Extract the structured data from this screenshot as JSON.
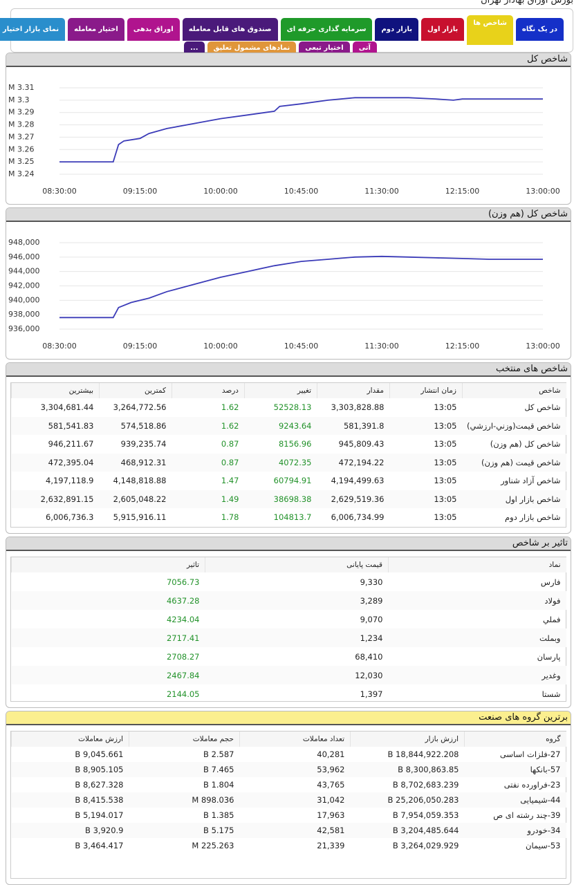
{
  "header": {
    "title": "بورس اوراق بهادار تهران"
  },
  "tabs": [
    {
      "label": "در یک نگاه",
      "color": "#1530c8"
    },
    {
      "label": "شاخص ها",
      "color": "#e8d21a"
    },
    {
      "label": "بازار اول",
      "color": "#c8102e"
    },
    {
      "label": "بازار دوم",
      "color": "#10127e"
    },
    {
      "label": "سرمایه گذاری حرفه ای",
      "color": "#1f9a2a"
    },
    {
      "label": "صندوق های قابل معامله",
      "color": "#4a1a7a"
    },
    {
      "label": "اوراق بدهی",
      "color": "#b0148e"
    },
    {
      "label": "اختیار معامله",
      "color": "#8a1a8a"
    },
    {
      "label": "نمای بازار اختیار معامله",
      "color": "#2a8ecc"
    }
  ],
  "tabs_row2": [
    {
      "label": "آتی",
      "color": "#b0148e"
    },
    {
      "label": "اختیار تبعی",
      "color": "#8a1a8a"
    },
    {
      "label": "نمادهای مشمول تعلیق",
      "color": "#e0963a"
    },
    {
      "label": "...",
      "color": "#4a1a7a"
    }
  ],
  "charts": [
    {
      "title": "شاخص کل",
      "type": "line",
      "color": "#3b3bb8",
      "x": [
        "08:30:00",
        "09:00:00",
        "09:03:00",
        "09:06:00",
        "09:15:00",
        "09:20:00",
        "09:30:00",
        "09:45:00",
        "10:00:00",
        "10:15:00",
        "10:25:00",
        "10:30:00",
        "10:33:00",
        "10:45:00",
        "11:00:00",
        "11:15:00",
        "11:30:00",
        "11:45:00",
        "12:00:00",
        "12:10:00",
        "12:15:00",
        "12:30:00",
        "13:00:00"
      ],
      "values": [
        3.25,
        3.25,
        3.264,
        3.267,
        3.269,
        3.273,
        3.277,
        3.281,
        3.285,
        3.288,
        3.29,
        3.291,
        3.295,
        3.297,
        3.3,
        3.302,
        3.302,
        3.302,
        3.301,
        3.3,
        3.301,
        3.301,
        3.301
      ],
      "xlim": [
        "08:30:00",
        "13:00:00"
      ],
      "xticks": [
        "08:30:00",
        "09:15:00",
        "10:00:00",
        "10:45:00",
        "11:30:00",
        "12:15:00",
        "13:00:00"
      ],
      "ylim": [
        3.24,
        3.31
      ],
      "yticks": [
        {
          "value": 3.24,
          "label": "M 3.24"
        },
        {
          "value": 3.25,
          "label": "M 3.25"
        },
        {
          "value": 3.26,
          "label": "M 3.26"
        },
        {
          "value": 3.27,
          "label": "M 3.27"
        },
        {
          "value": 3.28,
          "label": "M 3.28"
        },
        {
          "value": 3.29,
          "label": "M 3.29"
        },
        {
          "value": 3.3,
          "label": "M 3.3"
        },
        {
          "value": 3.31,
          "label": "M 3.31"
        }
      ],
      "grid": true
    },
    {
      "title": "شاخص کل (هم وزن)",
      "type": "line",
      "color": "#3b3bb8",
      "x": [
        "08:30:00",
        "09:00:00",
        "09:03:00",
        "09:10:00",
        "09:20:00",
        "09:30:00",
        "09:45:00",
        "10:00:00",
        "10:15:00",
        "10:30:00",
        "10:45:00",
        "11:00:00",
        "11:15:00",
        "11:30:00",
        "11:45:00",
        "12:00:00",
        "12:15:00",
        "12:30:00",
        "13:00:00"
      ],
      "values": [
        937600,
        937600,
        939000,
        939700,
        940300,
        941200,
        942200,
        943200,
        944000,
        944800,
        945400,
        945700,
        946000,
        946100,
        946000,
        945900,
        945800,
        945700,
        945700
      ],
      "xlim": [
        "08:30:00",
        "13:00:00"
      ],
      "xticks": [
        "08:30:00",
        "09:15:00",
        "10:00:00",
        "10:45:00",
        "11:30:00",
        "12:15:00",
        "13:00:00"
      ],
      "ylim": [
        936000,
        948000
      ],
      "yticks": [
        {
          "value": 936000,
          "label": "936,000"
        },
        {
          "value": 938000,
          "label": "938,000"
        },
        {
          "value": 940000,
          "label": "940,000"
        },
        {
          "value": 942000,
          "label": "942,000"
        },
        {
          "value": 944000,
          "label": "944,000"
        },
        {
          "value": 946000,
          "label": "946,000"
        },
        {
          "value": 948000,
          "label": "948,000"
        }
      ],
      "grid": true
    }
  ],
  "tables": [
    {
      "title": "شاخص های منتخب",
      "title_color": "#dcdcdc",
      "green_columns": [
        3,
        4
      ],
      "columns": [
        "شاخص",
        "زمان انتشار",
        "مقدار",
        "تغییر",
        "درصد",
        "کمترین",
        "بیشترین"
      ],
      "rows": [
        [
          "شاخص کل",
          "13:05",
          "3,303,828.88",
          "52528.13",
          "1.62",
          "3,264,772.56",
          "3,304,681.44"
        ],
        [
          "شاخص قیمت(وزني-ارزشي)",
          "13:05",
          "581,391.8",
          "9243.64",
          "1.62",
          "574,518.86",
          "581,541.83"
        ],
        [
          "شاخص کل (هم وزن)",
          "13:05",
          "945,809.43",
          "8156.96",
          "0.87",
          "939,235.74",
          "946,211.67"
        ],
        [
          "شاخص قیمت (هم وزن)",
          "13:05",
          "472,194.22",
          "4072.35",
          "0.87",
          "468,912.31",
          "472,395.04"
        ],
        [
          "شاخص آزاد شناور",
          "13:05",
          "4,194,499.63",
          "60794.91",
          "1.47",
          "4,148,818.88",
          "4,197,118.9"
        ],
        [
          "شاخص بازار اول",
          "13:05",
          "2,629,519.36",
          "38698.38",
          "1.49",
          "2,605,048.22",
          "2,632,891.15"
        ],
        [
          "شاخص بازار دوم",
          "13:05",
          "6,006,734.99",
          "104813.7",
          "1.78",
          "5,915,916.11",
          "6,006,736.3"
        ]
      ]
    },
    {
      "title": "تاثیر بر شاخص",
      "title_color": "#dcdcdc",
      "green_columns": [
        2
      ],
      "columns": [
        "نماد",
        "قیمت پایانی",
        "تاثیر"
      ],
      "rows": [
        [
          "فارس",
          "9,330",
          "7056.73"
        ],
        [
          "فولاد",
          "3,289",
          "4637.28"
        ],
        [
          "فملي",
          "9,070",
          "4234.04"
        ],
        [
          "وبملت",
          "1,234",
          "2717.41"
        ],
        [
          "پارسان",
          "68,410",
          "2708.27"
        ],
        [
          "وغدير",
          "12,030",
          "2467.84"
        ],
        [
          "شستا",
          "1,397",
          "2144.05"
        ]
      ]
    },
    {
      "title": "برترین گروه های صنعت",
      "title_color": "#fbef8f",
      "green_columns": [],
      "columns": [
        "گروه",
        "ارزش بازار",
        "تعداد معاملات",
        "حجم معاملات",
        "ارزش معاملات"
      ],
      "rows": [
        [
          "27-فلزات اساسی",
          "18,844,922.208 B",
          "40,281",
          "2.587 B",
          "9,045.661 B"
        ],
        [
          "57-بانکها",
          "8,300,863.85 B",
          "53,962",
          "7.465 B",
          "8,905.105 B"
        ],
        [
          "23-فراورده نفتی",
          "8,702,683.239 B",
          "43,765",
          "1.804 B",
          "8,627.328 B"
        ],
        [
          "44-شیمیایی",
          "25,206,050.283 B",
          "31,042",
          "898.036 M",
          "8,415.538 B"
        ],
        [
          "39-چند رشته ای ص",
          "7,954,059.353 B",
          "17,963",
          "1.385 B",
          "5,194.017 B"
        ],
        [
          "34-خودرو",
          "3,204,485.644 B",
          "42,581",
          "5.175 B",
          "3,920.9 B"
        ],
        [
          "53-سیمان",
          "3,264,029.929 B",
          "21,339",
          "225.263 M",
          "3,464.417 B"
        ]
      ]
    }
  ]
}
